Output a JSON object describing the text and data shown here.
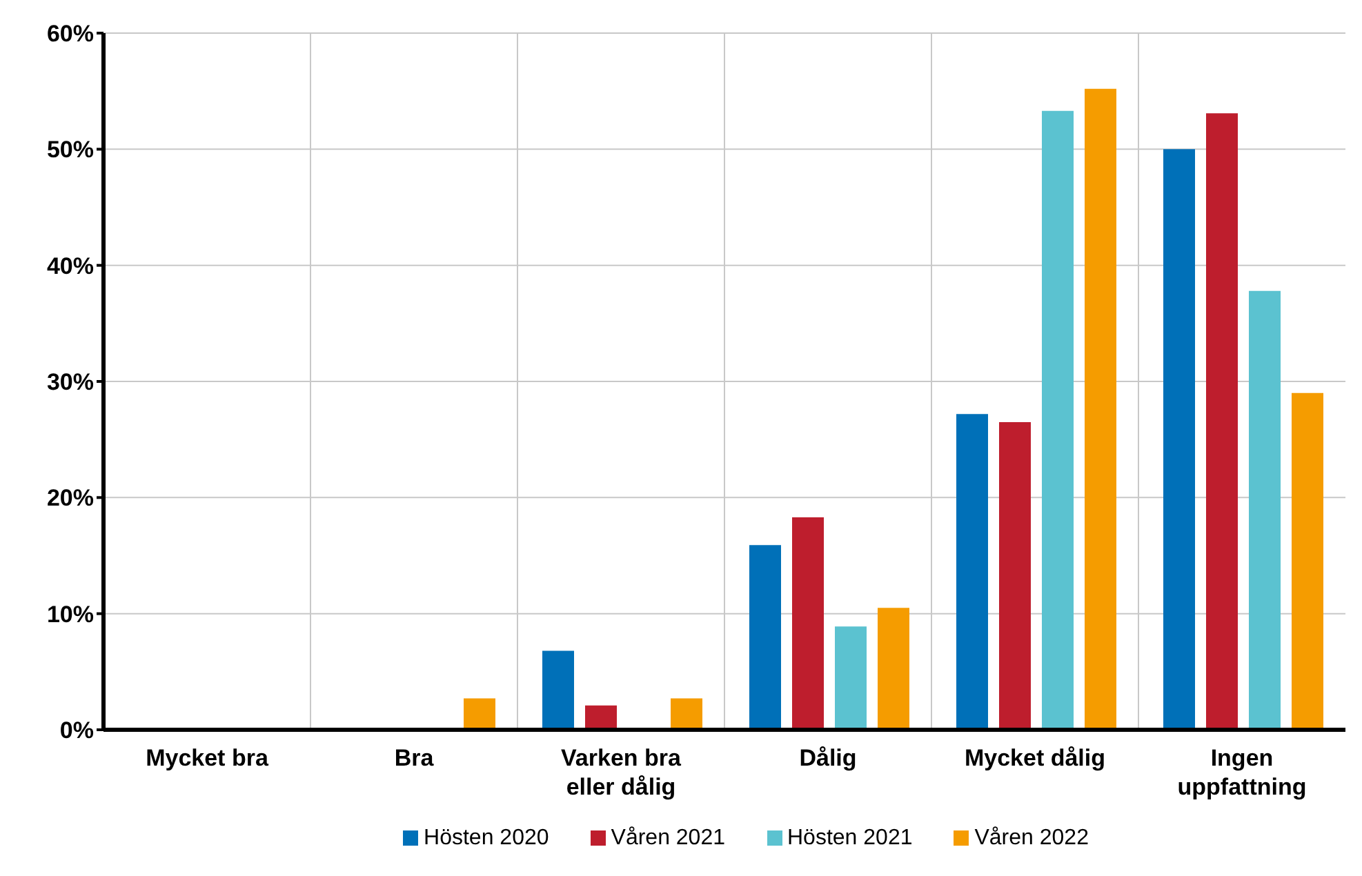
{
  "chart_data": {
    "type": "bar",
    "categories": [
      "Mycket bra",
      "Bra",
      "Varken bra eller dålig",
      "Dålig",
      "Mycket dålig",
      "Ingen uppfattning"
    ],
    "series": [
      {
        "name": "Hösten 2020",
        "color": "#0070b8",
        "values": [
          0,
          0,
          6.8,
          15.9,
          27.2,
          50.0
        ]
      },
      {
        "name": "Våren 2021",
        "color": "#be1e2d",
        "values": [
          0,
          0,
          2.1,
          18.3,
          26.5,
          53.1
        ]
      },
      {
        "name": "Hösten 2021",
        "color": "#5bc2d0",
        "values": [
          0,
          0,
          0,
          8.9,
          53.3,
          37.8
        ]
      },
      {
        "name": "Våren 2022",
        "color": "#f59c00",
        "values": [
          0,
          2.7,
          2.7,
          10.5,
          55.2,
          29.0
        ]
      }
    ],
    "ylim": [
      0,
      60
    ],
    "yticks": [
      {
        "value": 0,
        "label": "0%"
      },
      {
        "value": 10,
        "label": "10%"
      },
      {
        "value": 20,
        "label": "20%"
      },
      {
        "value": 30,
        "label": "30%"
      },
      {
        "value": 40,
        "label": "40%"
      },
      {
        "value": 50,
        "label": "50%"
      },
      {
        "value": 60,
        "label": "60%"
      }
    ],
    "grid": true,
    "legend": "bottom"
  }
}
